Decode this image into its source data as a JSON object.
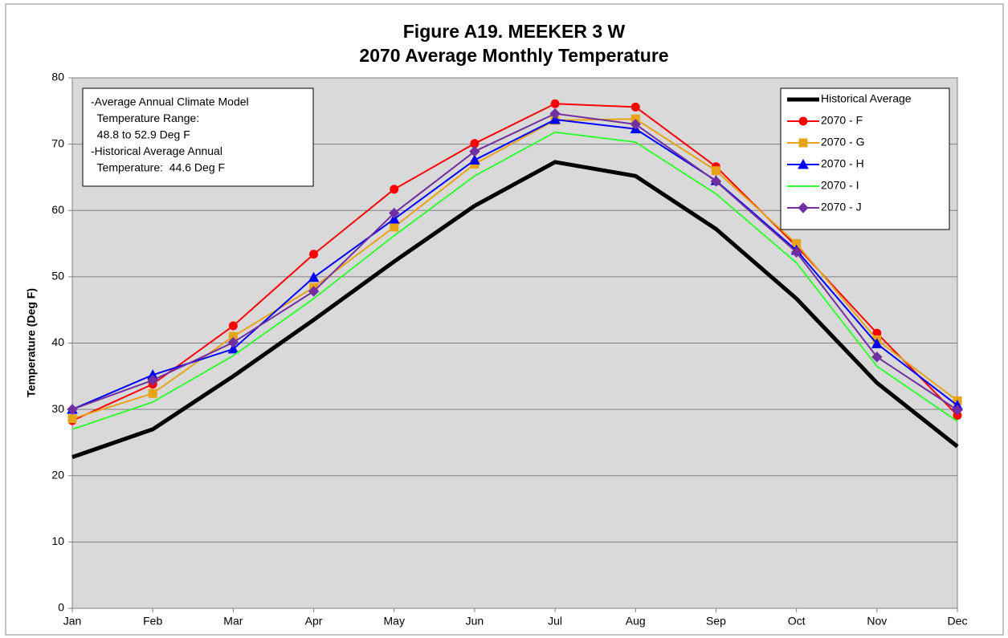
{
  "chart_data": {
    "type": "line",
    "title": "Figure A19. MEEKER 3 W",
    "subtitle": "2070 Average Monthly Temperature",
    "y_label": "Temperature (Deg F)",
    "annotation": [
      "-Average Annual Climate Model",
      "  Temperature Range:",
      "  48.8 to 52.9 Deg F",
      "-Historical Average Annual",
      "  Temperature:  44.6 Deg F"
    ],
    "categories": [
      "Jan",
      "Feb",
      "Mar",
      "Apr",
      "May",
      "Jun",
      "Jul",
      "Aug",
      "Sep",
      "Oct",
      "Nov",
      "Dec"
    ],
    "series": [
      {
        "name": "Historical Average",
        "color": "#000000",
        "width": 5,
        "marker": "none",
        "values": [
          22.8,
          27,
          35,
          43.5,
          52.3,
          60.7,
          67.3,
          65.2,
          57.2,
          46.7,
          34,
          24.4
        ]
      },
      {
        "name": "2070 - F",
        "color": "#ff0000",
        "width": 2,
        "marker": "circle",
        "values": [
          28.3,
          33.8,
          42.6,
          53.4,
          63.2,
          70.1,
          76.1,
          75.6,
          66.6,
          54.6,
          41.5,
          29.1
        ]
      },
      {
        "name": "2070 - G",
        "color": "#e8a317",
        "width": 2,
        "marker": "square",
        "values": [
          28.6,
          32.4,
          41,
          48.4,
          57.5,
          67,
          73.6,
          73.8,
          66,
          55,
          40.5,
          31.3
        ]
      },
      {
        "name": "2070 - H",
        "color": "#0000ff",
        "width": 2,
        "marker": "triangle",
        "values": [
          30,
          35.2,
          39.1,
          49.9,
          58.7,
          67.6,
          73.7,
          72.3,
          64.5,
          54,
          39.9,
          30.6
        ]
      },
      {
        "name": "2070 - I",
        "color": "#33ff33",
        "width": 2,
        "marker": "none",
        "values": [
          27,
          31.1,
          38.1,
          46.7,
          56.2,
          65.2,
          71.8,
          70.3,
          62.5,
          52.1,
          36.5,
          28.2
        ]
      },
      {
        "name": "2070 - J",
        "color": "#7030a0",
        "width": 2,
        "marker": "diamond",
        "values": [
          30,
          34.4,
          40.1,
          47.8,
          59.6,
          68.9,
          74.6,
          73,
          64.4,
          53.7,
          37.9,
          29.9
        ]
      }
    ],
    "ylim": [
      0,
      80
    ],
    "yticks": [
      0,
      10,
      20,
      30,
      40,
      50,
      60,
      70,
      80
    ],
    "grid": true,
    "legend": "top-right"
  }
}
